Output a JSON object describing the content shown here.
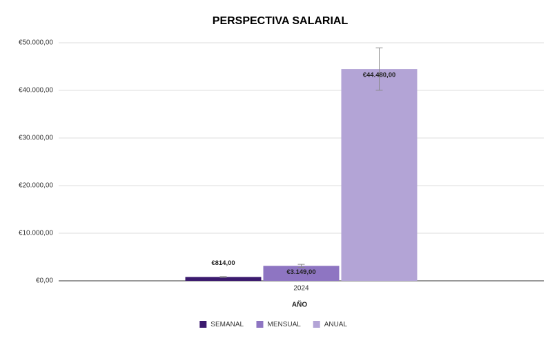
{
  "chart_data": {
    "type": "bar",
    "title": "PERSPECTIVA SALARIAL",
    "x_label": "AÑO",
    "categories": [
      "2024"
    ],
    "series": [
      {
        "name": "SEMANAL",
        "color": "#3b1a6e",
        "values": [
          814
        ],
        "value_labels": [
          "€814,00"
        ],
        "errors": [
          81.4
        ]
      },
      {
        "name": "MENSUAL",
        "color": "#8e75c2",
        "values": [
          3149
        ],
        "value_labels": [
          "€3.149,00"
        ],
        "errors": [
          314.9
        ]
      },
      {
        "name": "ANUAL",
        "color": "#b3a4d6",
        "values": [
          44480
        ],
        "value_labels": [
          "€44.480,00"
        ],
        "errors": [
          4448
        ]
      }
    ],
    "ylim": [
      0,
      50000
    ],
    "yticks": [
      {
        "value": 0,
        "label": "€0,00"
      },
      {
        "value": 10000,
        "label": "€10.000,00"
      },
      {
        "value": 20000,
        "label": "€20.000,00"
      },
      {
        "value": 30000,
        "label": "€30.000,00"
      },
      {
        "value": 40000,
        "label": "€40.000,00"
      },
      {
        "value": 50000,
        "label": "€50.000,00"
      }
    ],
    "grid": true,
    "legend": "bottom"
  }
}
